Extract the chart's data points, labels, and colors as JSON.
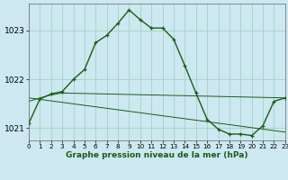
{
  "title": "Graphe pression niveau de la mer (hPa)",
  "background_color": "#cde8f0",
  "grid_color": "#a8d5c8",
  "line_color": "#1a5c1a",
  "xlim": [
    0,
    23
  ],
  "ylim": [
    1020.75,
    1023.55
  ],
  "yticks": [
    1021,
    1022,
    1023
  ],
  "xticks": [
    0,
    1,
    2,
    3,
    4,
    5,
    6,
    7,
    8,
    9,
    10,
    11,
    12,
    13,
    14,
    15,
    16,
    17,
    18,
    19,
    20,
    21,
    22,
    23
  ],
  "series1_x": [
    0,
    1,
    2,
    3,
    4,
    5,
    6,
    7,
    8,
    9,
    10,
    11,
    12,
    13,
    14,
    15,
    16,
    17,
    18,
    19,
    20,
    21,
    22,
    23
  ],
  "series1_y": [
    1021.1,
    1021.6,
    1021.7,
    1021.75,
    1022.0,
    1022.2,
    1022.75,
    1022.9,
    1023.15,
    1023.42,
    1023.22,
    1023.05,
    1023.05,
    1022.82,
    1022.28,
    1021.72,
    1021.18,
    1020.98,
    1020.88,
    1020.88,
    1020.85,
    1021.05,
    1021.55,
    1021.62
  ],
  "series2_x": [
    0,
    1,
    2,
    3,
    23
  ],
  "series2_y": [
    1021.55,
    1021.62,
    1021.68,
    1021.72,
    1021.62
  ],
  "series3_x": [
    0,
    23
  ],
  "series3_y": [
    1021.62,
    1020.92
  ],
  "xlabel_fontsize": 6.5,
  "ytick_fontsize": 6.5,
  "xtick_fontsize": 5.2
}
